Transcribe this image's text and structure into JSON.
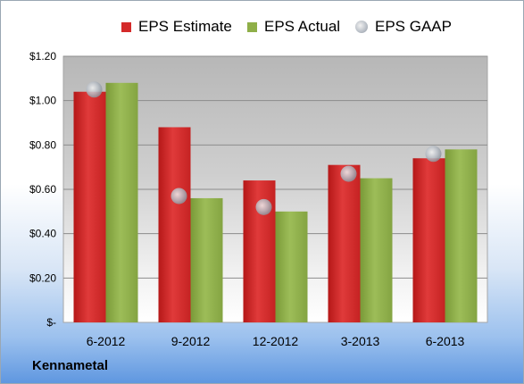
{
  "chart_data": {
    "type": "bar",
    "categories": [
      "6-2012",
      "9-2012",
      "12-2012",
      "3-2013",
      "6-2013"
    ],
    "series": [
      {
        "name": "EPS Estimate",
        "type": "bar",
        "color": "#d42a2a",
        "values": [
          1.04,
          0.88,
          0.64,
          0.71,
          0.74
        ]
      },
      {
        "name": "EPS Actual",
        "type": "bar",
        "color": "#8faf48",
        "values": [
          1.08,
          0.56,
          0.5,
          0.65,
          0.78
        ]
      },
      {
        "name": "EPS GAAP",
        "type": "marker",
        "color": "#b8bec6",
        "values": [
          1.05,
          0.57,
          0.52,
          0.67,
          0.76
        ]
      }
    ],
    "ylim": [
      0,
      1.2
    ],
    "yticks": [
      0,
      0.2,
      0.4,
      0.6,
      0.8,
      1.0,
      1.2
    ],
    "ytick_labels": [
      "$-",
      "$0.20",
      "$0.40",
      "$0.60",
      "$0.80",
      "$1.00",
      "$1.20"
    ],
    "grid": true,
    "legend_position": "top"
  },
  "footer": {
    "company": "Kennametal"
  }
}
